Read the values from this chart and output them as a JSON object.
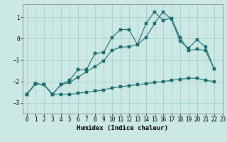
{
  "xlabel": "Humidex (Indice chaleur)",
  "bg_color": "#cce8e4",
  "line_color": "#1a6b6b",
  "grid_color": "#aacfcb",
  "xlim": [
    -0.5,
    23
  ],
  "ylim": [
    -3.5,
    1.6
  ],
  "yticks": [
    -3,
    -2,
    -1,
    0,
    1
  ],
  "xticks": [
    0,
    1,
    2,
    3,
    4,
    5,
    6,
    7,
    8,
    9,
    10,
    11,
    12,
    13,
    14,
    15,
    16,
    17,
    18,
    19,
    20,
    21,
    22,
    23
  ],
  "line1_x": [
    0,
    1,
    2,
    3,
    4,
    5,
    6,
    7,
    8,
    9,
    10,
    11,
    12,
    13,
    14,
    15,
    16,
    17,
    18,
    19,
    20,
    21,
    22
  ],
  "line1_y": [
    -2.6,
    -2.1,
    -2.15,
    -2.6,
    -2.6,
    -2.6,
    -2.55,
    -2.5,
    -2.45,
    -2.4,
    -2.3,
    -2.25,
    -2.2,
    -2.15,
    -2.1,
    -2.05,
    -2.0,
    -1.95,
    -1.9,
    -1.85,
    -1.85,
    -1.95,
    -2.0
  ],
  "line2_x": [
    0,
    1,
    2,
    3,
    4,
    5,
    6,
    7,
    8,
    9,
    10,
    11,
    12,
    13,
    14,
    15,
    16,
    17,
    18,
    19,
    20,
    21,
    22
  ],
  "line2_y": [
    -2.6,
    -2.1,
    -2.15,
    -2.6,
    -2.15,
    -1.95,
    -1.45,
    -1.45,
    -0.7,
    -0.65,
    0.05,
    0.42,
    0.42,
    -0.28,
    0.7,
    1.25,
    0.85,
    0.95,
    0.05,
    -0.55,
    -0.5,
    -0.55,
    -1.4
  ],
  "line3_x": [
    0,
    1,
    2,
    3,
    4,
    5,
    6,
    7,
    8,
    9,
    10,
    11,
    12,
    13,
    14,
    15,
    16,
    17,
    18,
    19,
    20,
    21,
    22
  ],
  "line3_y": [
    -2.6,
    -2.1,
    -2.15,
    -2.6,
    -2.15,
    -2.05,
    -1.8,
    -1.55,
    -1.3,
    -1.05,
    -0.55,
    -0.4,
    -0.38,
    -0.28,
    0.05,
    0.7,
    1.25,
    0.9,
    -0.12,
    -0.45,
    -0.05,
    -0.4,
    -1.4
  ]
}
